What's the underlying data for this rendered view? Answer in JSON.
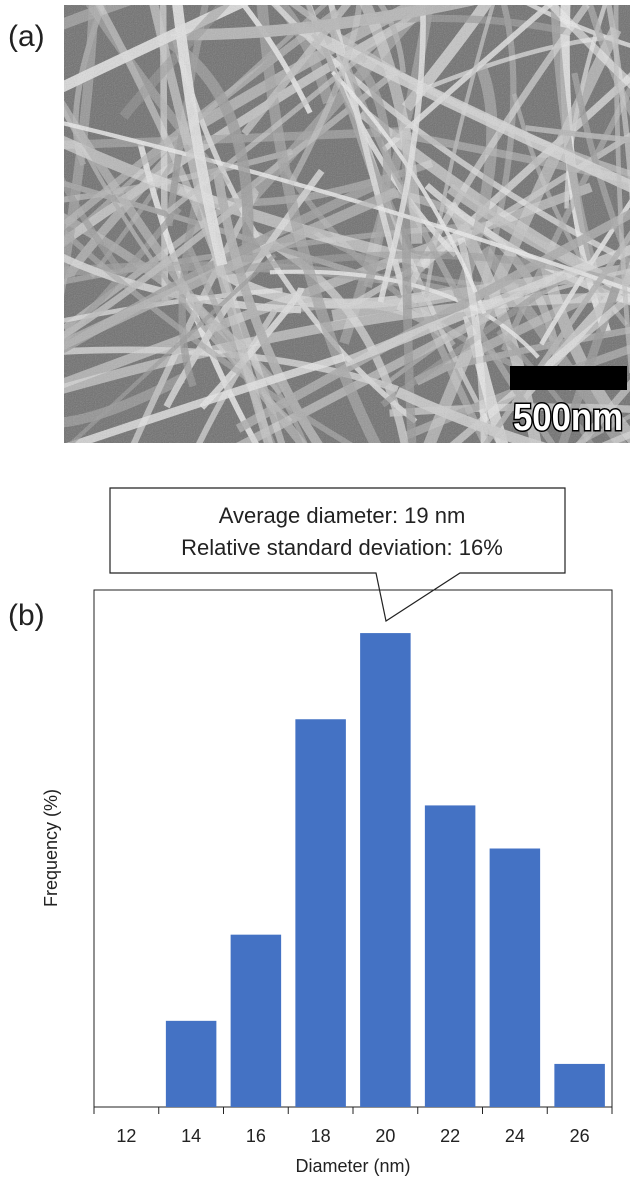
{
  "panel_a": {
    "label": "(a)",
    "scale_bar": "500nm"
  },
  "chart_data": {
    "type": "bar",
    "panel_label": "(b)",
    "annotation": [
      "Average diameter: 19 nm",
      "Relative standard deviation: 16%"
    ],
    "xlabel": "Diameter (nm)",
    "ylabel": "Frequency (%)",
    "categories": [
      "12",
      "14",
      "16",
      "18",
      "20",
      "22",
      "24",
      "26"
    ],
    "values": [
      0,
      5,
      10,
      22.5,
      27.5,
      17.5,
      15,
      2.5
    ],
    "color": "#4472c4",
    "ylim": [
      0,
      30
    ]
  }
}
